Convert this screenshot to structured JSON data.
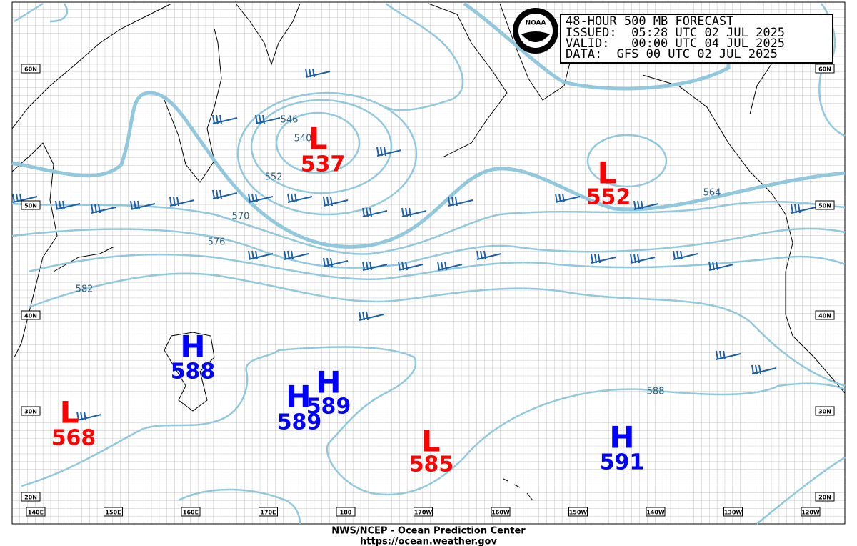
{
  "header": {
    "lines": [
      "48-HOUR 500 MB FORECAST",
      "ISSUED:  05:28 UTC 02 JUL 2025",
      "VALID:   00:00 UTC 04 JUL 2025",
      "DATA:  GFS 00 UTC 02 JUL 2025"
    ],
    "logo": "NOAA"
  },
  "centers": [
    {
      "letter": "L",
      "value": "537"
    },
    {
      "letter": "L",
      "value": "552"
    },
    {
      "letter": "H",
      "value": "588"
    },
    {
      "letter": "H",
      "value": "589"
    },
    {
      "letter": "H",
      "value": "589"
    },
    {
      "letter": "L",
      "value": "568"
    },
    {
      "letter": "L",
      "value": "585"
    },
    {
      "letter": "H",
      "value": "591"
    }
  ],
  "contour_labels": [
    "546",
    "540",
    "552",
    "570",
    "576",
    "582",
    "564",
    "588"
  ],
  "latitudes": [
    "60N",
    "50N",
    "40N",
    "30N",
    "20N"
  ],
  "longitudes": [
    "140E",
    "150E",
    "160E",
    "170E",
    "180",
    "170W",
    "160W",
    "150W",
    "140W",
    "130W",
    "120W"
  ],
  "footer": {
    "line1": "NWS/NCEP - Ocean Prediction Center",
    "line2": "https://ocean.weather.gov"
  }
}
